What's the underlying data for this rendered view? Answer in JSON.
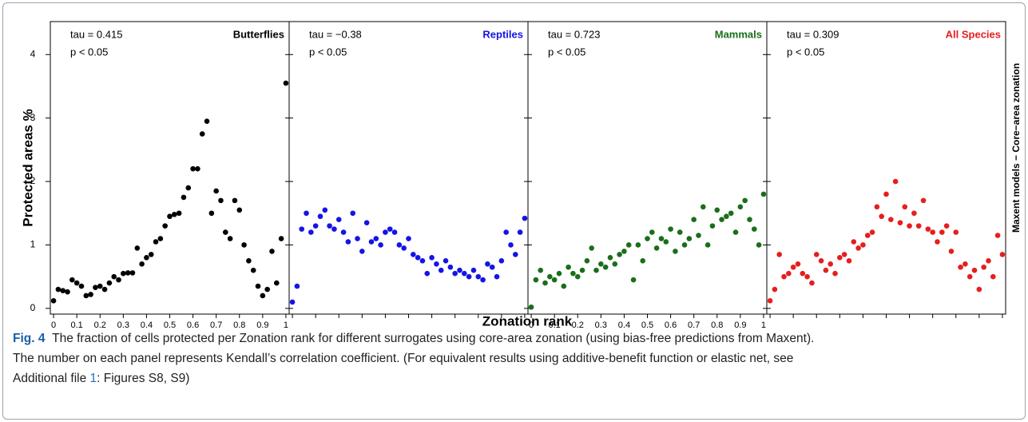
{
  "figure": {
    "ylabel": "Protected areas %",
    "xlabel": "Zonation rank",
    "side_label": "Maxent models − Core−area zonation",
    "caption": {
      "label": "Fig. 4",
      "line1": "The fraction of cells protected per Zonation rank for different surrogates using core-area zonation (using bias-free predictions from Maxent).",
      "line2": "The number on each panel represents Kendall’s correlation coefficient. (For equivalent results using additive-benefit function or elastic net, see",
      "line3_prefix": "Additional file ",
      "link": "1",
      "line3_suffix": ": Figures S8, S9)"
    }
  },
  "chart_data": [
    {
      "type": "scatter",
      "title": "Butterflies",
      "color": "#000000",
      "annotations": [
        "tau = 0.415",
        "p  < 0.05"
      ],
      "x": [
        0,
        0.02,
        0.04,
        0.06,
        0.08,
        0.1,
        0.12,
        0.14,
        0.16,
        0.18,
        0.2,
        0.22,
        0.24,
        0.26,
        0.28,
        0.3,
        0.32,
        0.34,
        0.36,
        0.38,
        0.4,
        0.42,
        0.44,
        0.46,
        0.48,
        0.5,
        0.52,
        0.54,
        0.56,
        0.58,
        0.6,
        0.62,
        0.64,
        0.66,
        0.68,
        0.7,
        0.72,
        0.74,
        0.76,
        0.78,
        0.8,
        0.82,
        0.84,
        0.86,
        0.88,
        0.9,
        0.92,
        0.94,
        0.96,
        0.98,
        1
      ],
      "values": [
        0.12,
        0.3,
        0.28,
        0.26,
        0.45,
        0.4,
        0.35,
        0.2,
        0.22,
        0.33,
        0.35,
        0.3,
        0.4,
        0.5,
        0.45,
        0.55,
        0.56,
        0.56,
        0.95,
        0.7,
        0.8,
        0.85,
        1.05,
        1.1,
        1.3,
        1.45,
        1.48,
        1.5,
        1.75,
        1.9,
        2.2,
        2.2,
        2.75,
        2.95,
        1.5,
        1.85,
        1.7,
        1.2,
        1.1,
        1.7,
        1.55,
        1.0,
        0.75,
        0.6,
        0.35,
        0.2,
        0.3,
        0.9,
        0.4,
        1.1,
        3.55
      ],
      "xlim": [
        -0.014,
        1.014
      ],
      "ylim": [
        -0.09,
        4.52
      ],
      "xticks": [
        0,
        0.1,
        0.2,
        0.3,
        0.4,
        0.5,
        0.6,
        0.7,
        0.8,
        0.9,
        1
      ],
      "yticks": [
        0,
        1,
        2,
        3,
        4
      ]
    },
    {
      "type": "scatter",
      "title": "Reptiles",
      "color": "#1414e6",
      "annotations": [
        "tau = −0.38",
        "p  < 0.05"
      ],
      "x": [
        0,
        0.02,
        0.04,
        0.06,
        0.08,
        0.1,
        0.12,
        0.14,
        0.16,
        0.18,
        0.2,
        0.22,
        0.24,
        0.26,
        0.28,
        0.3,
        0.32,
        0.34,
        0.36,
        0.38,
        0.4,
        0.42,
        0.44,
        0.46,
        0.48,
        0.5,
        0.52,
        0.54,
        0.56,
        0.58,
        0.6,
        0.62,
        0.64,
        0.66,
        0.68,
        0.7,
        0.72,
        0.74,
        0.76,
        0.78,
        0.8,
        0.82,
        0.84,
        0.86,
        0.88,
        0.9,
        0.92,
        0.94,
        0.96,
        0.98,
        1
      ],
      "values": [
        0.1,
        0.35,
        1.25,
        1.5,
        1.2,
        1.3,
        1.45,
        1.55,
        1.3,
        1.25,
        1.4,
        1.2,
        1.05,
        1.5,
        1.1,
        0.9,
        1.35,
        1.05,
        1.1,
        1.0,
        1.2,
        1.25,
        1.2,
        1.0,
        0.95,
        1.1,
        0.85,
        0.8,
        0.75,
        0.55,
        0.8,
        0.7,
        0.6,
        0.75,
        0.65,
        0.55,
        0.6,
        0.55,
        0.5,
        0.6,
        0.5,
        0.45,
        0.7,
        0.65,
        0.5,
        0.75,
        1.2,
        1.0,
        0.85,
        1.2,
        1.42
      ],
      "xlim": [
        -0.014,
        1.014
      ],
      "ylim": [
        -0.09,
        4.52
      ],
      "xticks": [
        0,
        0.1,
        0.2,
        0.3,
        0.4,
        0.5,
        0.6,
        0.7,
        0.8,
        0.9,
        1
      ],
      "yticks": [
        0,
        1,
        2,
        3,
        4
      ]
    },
    {
      "type": "scatter",
      "title": "Mammals",
      "color": "#1a6e1a",
      "annotations": [
        "tau = 0.723",
        "p  < 0.05"
      ],
      "x": [
        0,
        0.02,
        0.04,
        0.06,
        0.08,
        0.1,
        0.12,
        0.14,
        0.16,
        0.18,
        0.2,
        0.22,
        0.24,
        0.26,
        0.28,
        0.3,
        0.32,
        0.34,
        0.36,
        0.38,
        0.4,
        0.42,
        0.44,
        0.46,
        0.48,
        0.5,
        0.52,
        0.54,
        0.56,
        0.58,
        0.6,
        0.62,
        0.64,
        0.66,
        0.68,
        0.7,
        0.72,
        0.74,
        0.76,
        0.78,
        0.8,
        0.82,
        0.84,
        0.86,
        0.88,
        0.9,
        0.92,
        0.94,
        0.96,
        0.98,
        1
      ],
      "values": [
        0.02,
        0.45,
        0.6,
        0.4,
        0.5,
        0.45,
        0.55,
        0.35,
        0.65,
        0.55,
        0.5,
        0.6,
        0.75,
        0.95,
        0.6,
        0.7,
        0.65,
        0.8,
        0.7,
        0.85,
        0.9,
        1.0,
        0.45,
        1.0,
        0.75,
        1.1,
        1.2,
        0.95,
        1.1,
        1.05,
        1.25,
        0.9,
        1.2,
        1.0,
        1.1,
        1.4,
        1.15,
        1.6,
        1.0,
        1.3,
        1.55,
        1.4,
        1.45,
        1.5,
        1.2,
        1.6,
        1.7,
        1.4,
        1.25,
        1.0,
        1.8
      ],
      "xlim": [
        -0.014,
        1.014
      ],
      "ylim": [
        -0.09,
        4.52
      ],
      "xticks": [
        0,
        0.1,
        0.2,
        0.3,
        0.4,
        0.5,
        0.6,
        0.7,
        0.8,
        0.9,
        1
      ],
      "yticks": [
        0,
        1,
        2,
        3,
        4
      ]
    },
    {
      "type": "scatter",
      "title": "All Species",
      "color": "#e61e1e",
      "annotations": [
        "tau = 0.309",
        "p  < 0.05"
      ],
      "x": [
        0,
        0.02,
        0.04,
        0.06,
        0.08,
        0.1,
        0.12,
        0.14,
        0.16,
        0.18,
        0.2,
        0.22,
        0.24,
        0.26,
        0.28,
        0.3,
        0.32,
        0.34,
        0.36,
        0.38,
        0.4,
        0.42,
        0.44,
        0.46,
        0.48,
        0.5,
        0.52,
        0.54,
        0.56,
        0.58,
        0.6,
        0.62,
        0.64,
        0.66,
        0.68,
        0.7,
        0.72,
        0.74,
        0.76,
        0.78,
        0.8,
        0.82,
        0.84,
        0.86,
        0.88,
        0.9,
        0.92,
        0.94,
        0.96,
        0.98,
        1
      ],
      "values": [
        0.12,
        0.3,
        0.85,
        0.5,
        0.55,
        0.65,
        0.7,
        0.55,
        0.5,
        0.4,
        0.85,
        0.75,
        0.6,
        0.7,
        0.55,
        0.8,
        0.85,
        0.75,
        1.05,
        0.95,
        1.0,
        1.15,
        1.2,
        1.6,
        1.45,
        1.8,
        1.4,
        2.0,
        1.35,
        1.6,
        1.3,
        1.5,
        1.3,
        1.7,
        1.25,
        1.2,
        1.05,
        1.2,
        1.3,
        0.9,
        1.2,
        0.65,
        0.7,
        0.5,
        0.6,
        0.3,
        0.65,
        0.75,
        0.5,
        1.15,
        0.85
      ],
      "xlim": [
        -0.014,
        1.014
      ],
      "ylim": [
        -0.09,
        4.52
      ],
      "xticks": [
        0,
        0.1,
        0.2,
        0.3,
        0.4,
        0.5,
        0.6,
        0.7,
        0.8,
        0.9,
        1
      ],
      "yticks": [
        0,
        1,
        2,
        3,
        4
      ]
    }
  ]
}
